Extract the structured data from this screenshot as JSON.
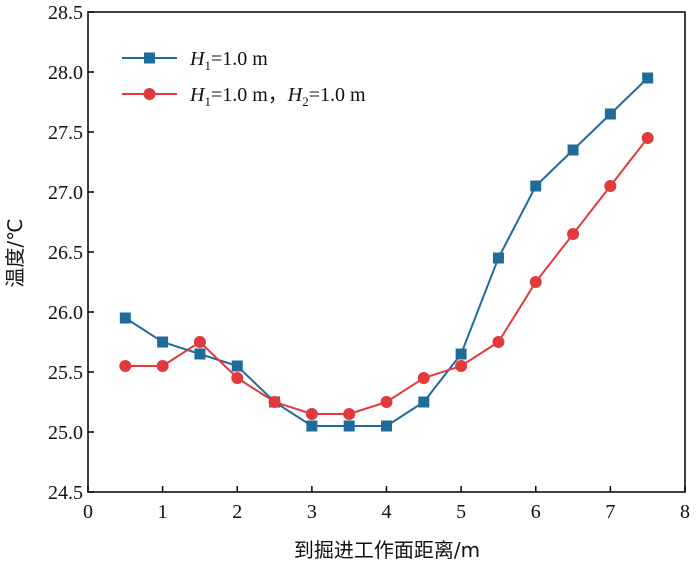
{
  "chart_data": {
    "type": "line",
    "xlabel": "到掘进工作面距离/m",
    "ylabel": "温度/℃",
    "xlim": [
      0,
      8
    ],
    "ylim": [
      24.5,
      28.5
    ],
    "x_ticks": [
      0,
      1,
      2,
      3,
      4,
      5,
      6,
      7,
      8
    ],
    "y_ticks": [
      24.5,
      25.0,
      25.5,
      26.0,
      26.5,
      27.0,
      27.5,
      28.0,
      28.5
    ],
    "x_tick_labels": [
      "0",
      "1",
      "2",
      "3",
      "4",
      "5",
      "6",
      "7",
      "8"
    ],
    "y_tick_labels": [
      "24.5",
      "25.0",
      "25.5",
      "26.0",
      "26.5",
      "27.0",
      "27.5",
      "28.0",
      "28.5"
    ],
    "grid": false,
    "legend_position": "top-left",
    "x": [
      0.5,
      1.0,
      1.5,
      2.0,
      2.5,
      3.0,
      3.5,
      4.0,
      4.5,
      5.0,
      5.5,
      6.0,
      6.5,
      7.0,
      7.5
    ],
    "series": [
      {
        "name": "H1=1.0 m",
        "legend_parts": [
          {
            "italic": "H",
            "sub": "1",
            "text": "=1.0 m"
          }
        ],
        "marker": "square",
        "color": "#1f6b9b",
        "values": [
          25.95,
          25.75,
          25.65,
          25.55,
          25.25,
          25.05,
          25.05,
          25.05,
          25.25,
          25.65,
          26.45,
          27.05,
          27.35,
          27.65,
          27.95
        ]
      },
      {
        "name": "H1=1.0 m，H2=1.0 m",
        "legend_parts": [
          {
            "italic": "H",
            "sub": "1",
            "text": "=1.0 m，"
          },
          {
            "italic": "H",
            "sub": "2",
            "text": "=1.0 m"
          }
        ],
        "marker": "circle",
        "color": "#e03a3c",
        "values": [
          25.55,
          25.55,
          25.75,
          25.45,
          25.25,
          25.15,
          25.15,
          25.25,
          25.45,
          25.55,
          25.75,
          26.25,
          26.65,
          27.05,
          27.45
        ]
      }
    ]
  }
}
